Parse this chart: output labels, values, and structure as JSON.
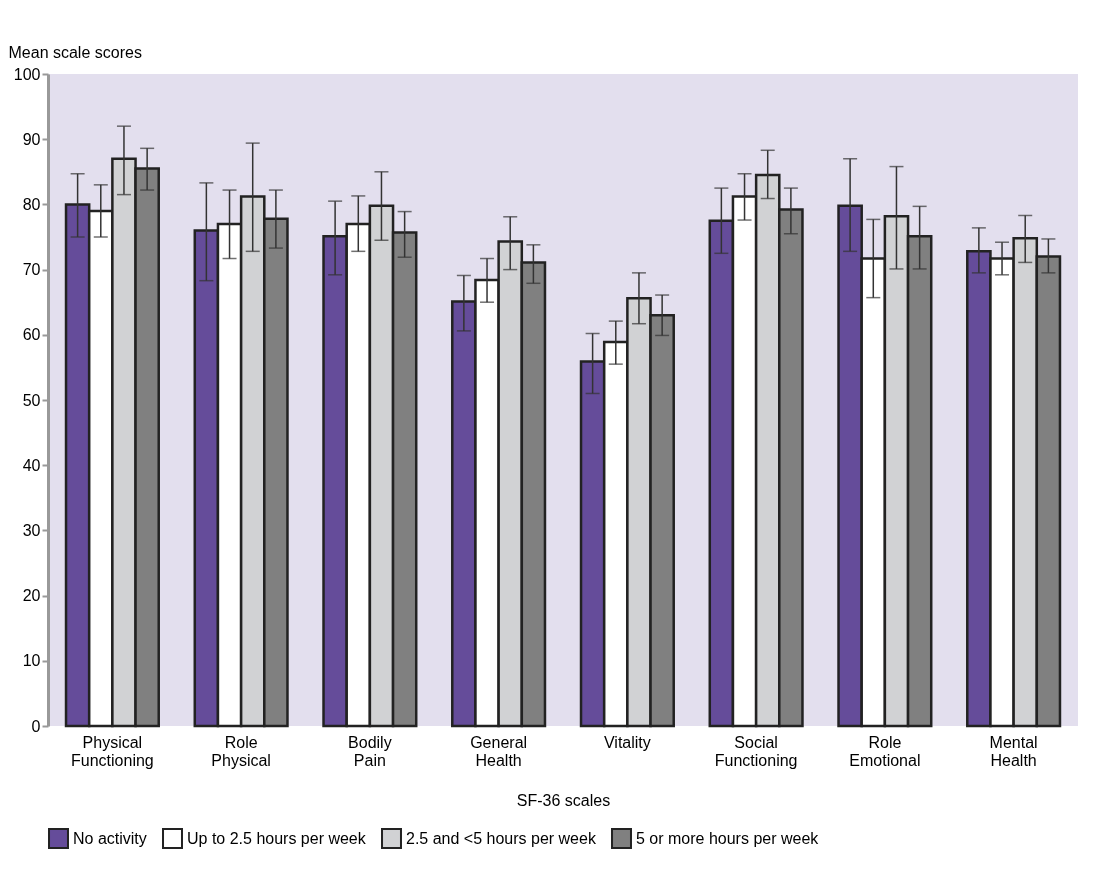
{
  "chart_data": {
    "type": "bar",
    "xlabel": "SF-36 scales",
    "ylabel": "Mean scale scores",
    "categories": [
      "Physical Functioning",
      "Role Physical",
      "Bodily Pain",
      "General Health",
      "Vitality",
      "Social Functioning",
      "Role Emotional",
      "Mental Health"
    ],
    "series": [
      {
        "name": "No activity",
        "color": "#654c9a",
        "values": [
          80,
          76,
          75.1,
          65.1,
          55.9,
          77.5,
          79.8,
          72.8
        ],
        "errors": [
          [
            75,
            84.7
          ],
          [
            68.3,
            83.3
          ],
          [
            69.2,
            80.5
          ],
          [
            60.6,
            69.1
          ],
          [
            51,
            60.2
          ],
          [
            72.5,
            82.5
          ],
          [
            72.8,
            87
          ],
          [
            69.5,
            76.4
          ]
        ]
      },
      {
        "name": "Up to 2.5 hours per week",
        "color": "#ffffff",
        "values": [
          79,
          77,
          77,
          68.4,
          58.9,
          81.2,
          71.7,
          71.7
        ],
        "errors": [
          [
            75,
            83
          ],
          [
            71.7,
            82.2
          ],
          [
            72.8,
            81.3
          ],
          [
            65,
            71.7
          ],
          [
            55.5,
            62.1
          ],
          [
            77.6,
            84.7
          ],
          [
            65.7,
            77.7
          ],
          [
            69.2,
            74.2
          ]
        ]
      },
      {
        "name": "2.5 and <5 hours per week",
        "color": "#d1d2d4",
        "values": [
          87,
          81.2,
          79.8,
          74.3,
          65.6,
          84.5,
          78.2,
          74.8
        ],
        "errors": [
          [
            81.5,
            92
          ],
          [
            72.8,
            89.4
          ],
          [
            74.5,
            85
          ],
          [
            70,
            78.1
          ],
          [
            61.7,
            69.5
          ],
          [
            80.9,
            88.3
          ],
          [
            70.1,
            85.8
          ],
          [
            71.1,
            78.3
          ]
        ]
      },
      {
        "name": "5 or more hours per week",
        "color": "#808080",
        "values": [
          85.5,
          77.8,
          75.7,
          71.1,
          63,
          79.2,
          75.1,
          72
        ],
        "errors": [
          [
            82.2,
            88.6
          ],
          [
            73.3,
            82.2
          ],
          [
            71.9,
            78.9
          ],
          [
            67.9,
            73.8
          ],
          [
            59.9,
            66.1
          ],
          [
            75.5,
            82.5
          ],
          [
            70.1,
            79.7
          ],
          [
            69.5,
            74.7
          ]
        ]
      }
    ],
    "ylim": [
      0,
      100
    ],
    "yticks": [
      0,
      10,
      20,
      30,
      40,
      50,
      60,
      70,
      80,
      90,
      100
    ],
    "grid": false,
    "legend": "bottom"
  }
}
